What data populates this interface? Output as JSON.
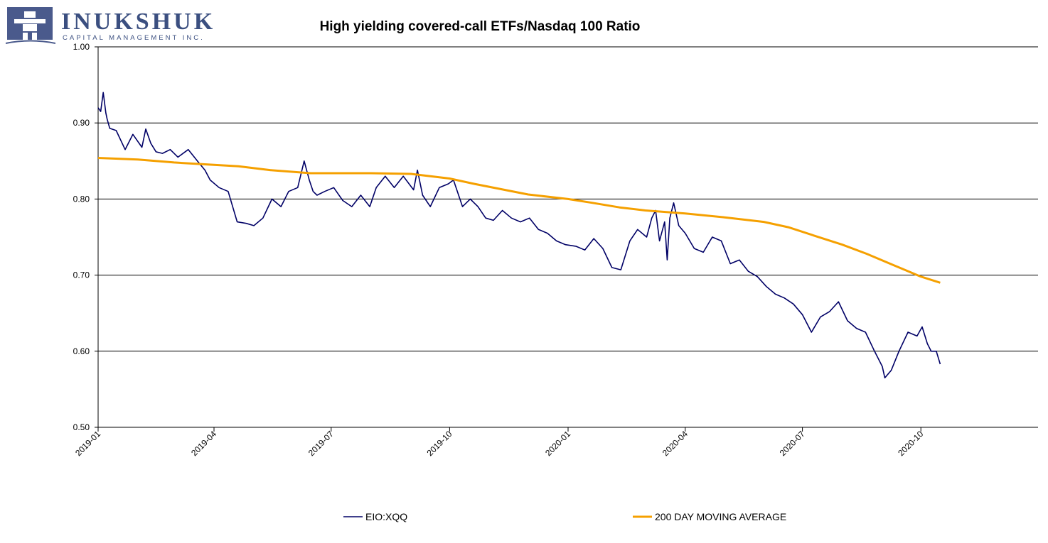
{
  "logo": {
    "name": "INUKSHUK",
    "tagline": "CAPITAL MANAGEMENT INC."
  },
  "chart_data": {
    "type": "line",
    "title": "High yielding covered-call ETFs/Nasdaq 100 Ratio",
    "xlabel": "",
    "ylabel": "",
    "ylim": [
      0.5,
      1.0
    ],
    "xlim": [
      "2019-01-01",
      "2020-12-31"
    ],
    "yticks": [
      "0.50",
      "0.60",
      "0.70",
      "0.80",
      "0.90",
      "1.00"
    ],
    "xticks": [
      "2019-01",
      "2019-04",
      "2019-07",
      "2019-10",
      "2020-01",
      "2020-04",
      "2020-07",
      "2020-10"
    ],
    "grid": "horizontal",
    "legend_position": "bottom",
    "colors": {
      "series1": "#000066",
      "series2": "#f5a000"
    },
    "series": [
      {
        "name": "EIO:XQQ",
        "x": [
          "2019-01-01",
          "2019-01-03",
          "2019-01-05",
          "2019-01-07",
          "2019-01-08",
          "2019-01-10",
          "2019-01-15",
          "2019-01-22",
          "2019-01-28",
          "2019-02-04",
          "2019-02-07",
          "2019-02-11",
          "2019-02-15",
          "2019-02-20",
          "2019-02-26",
          "2019-03-04",
          "2019-03-12",
          "2019-03-20",
          "2019-03-25",
          "2019-03-29",
          "2019-04-05",
          "2019-04-12",
          "2019-04-19",
          "2019-04-26",
          "2019-05-02",
          "2019-05-09",
          "2019-05-16",
          "2019-05-23",
          "2019-05-29",
          "2019-06-05",
          "2019-06-10",
          "2019-06-14",
          "2019-06-17",
          "2019-06-20",
          "2019-06-26",
          "2019-07-03",
          "2019-07-10",
          "2019-07-17",
          "2019-07-24",
          "2019-07-31",
          "2019-08-05",
          "2019-08-12",
          "2019-08-19",
          "2019-08-26",
          "2019-09-03",
          "2019-09-06",
          "2019-09-10",
          "2019-09-16",
          "2019-09-23",
          "2019-09-30",
          "2019-10-04",
          "2019-10-11",
          "2019-10-17",
          "2019-10-23",
          "2019-10-29",
          "2019-11-04",
          "2019-11-11",
          "2019-11-18",
          "2019-11-25",
          "2019-12-02",
          "2019-12-09",
          "2019-12-16",
          "2019-12-23",
          "2019-12-30",
          "2020-01-07",
          "2020-01-14",
          "2020-01-21",
          "2020-01-28",
          "2020-02-04",
          "2020-02-11",
          "2020-02-18",
          "2020-02-24",
          "2020-03-02",
          "2020-03-06",
          "2020-03-09",
          "2020-03-12",
          "2020-03-16",
          "2020-03-18",
          "2020-03-20",
          "2020-03-23",
          "2020-03-27",
          "2020-04-01",
          "2020-04-08",
          "2020-04-15",
          "2020-04-22",
          "2020-04-29",
          "2020-05-06",
          "2020-05-13",
          "2020-05-20",
          "2020-05-27",
          "2020-06-03",
          "2020-06-10",
          "2020-06-17",
          "2020-06-24",
          "2020-07-01",
          "2020-07-08",
          "2020-07-15",
          "2020-07-22",
          "2020-07-29",
          "2020-08-05",
          "2020-08-12",
          "2020-08-19",
          "2020-08-26",
          "2020-09-01",
          "2020-09-03",
          "2020-09-08",
          "2020-09-14",
          "2020-09-21",
          "2020-09-28",
          "2020-10-02",
          "2020-10-06",
          "2020-10-09",
          "2020-10-13",
          "2020-10-16"
        ],
        "values": [
          0.92,
          0.915,
          0.94,
          0.913,
          0.905,
          0.893,
          0.89,
          0.865,
          0.885,
          0.868,
          0.892,
          0.873,
          0.862,
          0.86,
          0.865,
          0.855,
          0.865,
          0.848,
          0.838,
          0.825,
          0.815,
          0.81,
          0.77,
          0.768,
          0.765,
          0.775,
          0.8,
          0.79,
          0.81,
          0.815,
          0.85,
          0.825,
          0.81,
          0.805,
          0.81,
          0.815,
          0.798,
          0.79,
          0.805,
          0.79,
          0.815,
          0.83,
          0.815,
          0.83,
          0.812,
          0.838,
          0.805,
          0.79,
          0.815,
          0.82,
          0.825,
          0.79,
          0.8,
          0.79,
          0.775,
          0.772,
          0.785,
          0.775,
          0.77,
          0.775,
          0.76,
          0.755,
          0.745,
          0.74,
          0.738,
          0.733,
          0.748,
          0.735,
          0.71,
          0.707,
          0.745,
          0.76,
          0.75,
          0.775,
          0.785,
          0.745,
          0.77,
          0.72,
          0.775,
          0.795,
          0.765,
          0.755,
          0.735,
          0.73,
          0.75,
          0.745,
          0.715,
          0.72,
          0.705,
          0.698,
          0.685,
          0.675,
          0.67,
          0.662,
          0.648,
          0.625,
          0.645,
          0.652,
          0.665,
          0.64,
          0.63,
          0.625,
          0.6,
          0.58,
          0.565,
          0.575,
          0.6,
          0.625,
          0.62,
          0.632,
          0.61,
          0.6,
          0.6,
          0.583
        ]
      },
      {
        "name": "200 DAY MOVING AVERAGE",
        "x": [
          "2019-01-01",
          "2019-02-01",
          "2019-03-01",
          "2019-04-01",
          "2019-04-20",
          "2019-05-15",
          "2019-06-15",
          "2019-07-01",
          "2019-08-01",
          "2019-09-01",
          "2019-10-01",
          "2019-10-20",
          "2019-11-10",
          "2019-12-01",
          "2020-01-01",
          "2020-01-20",
          "2020-02-10",
          "2020-03-01",
          "2020-04-01",
          "2020-05-01",
          "2020-06-01",
          "2020-06-20",
          "2020-07-10",
          "2020-08-01",
          "2020-08-20",
          "2020-09-10",
          "2020-10-01",
          "2020-10-16"
        ],
        "values": [
          0.854,
          0.852,
          0.848,
          0.845,
          0.843,
          0.838,
          0.834,
          0.834,
          0.834,
          0.833,
          0.827,
          0.82,
          0.813,
          0.806,
          0.8,
          0.795,
          0.789,
          0.785,
          0.781,
          0.776,
          0.77,
          0.763,
          0.752,
          0.74,
          0.728,
          0.713,
          0.698,
          0.69
        ]
      }
    ]
  }
}
